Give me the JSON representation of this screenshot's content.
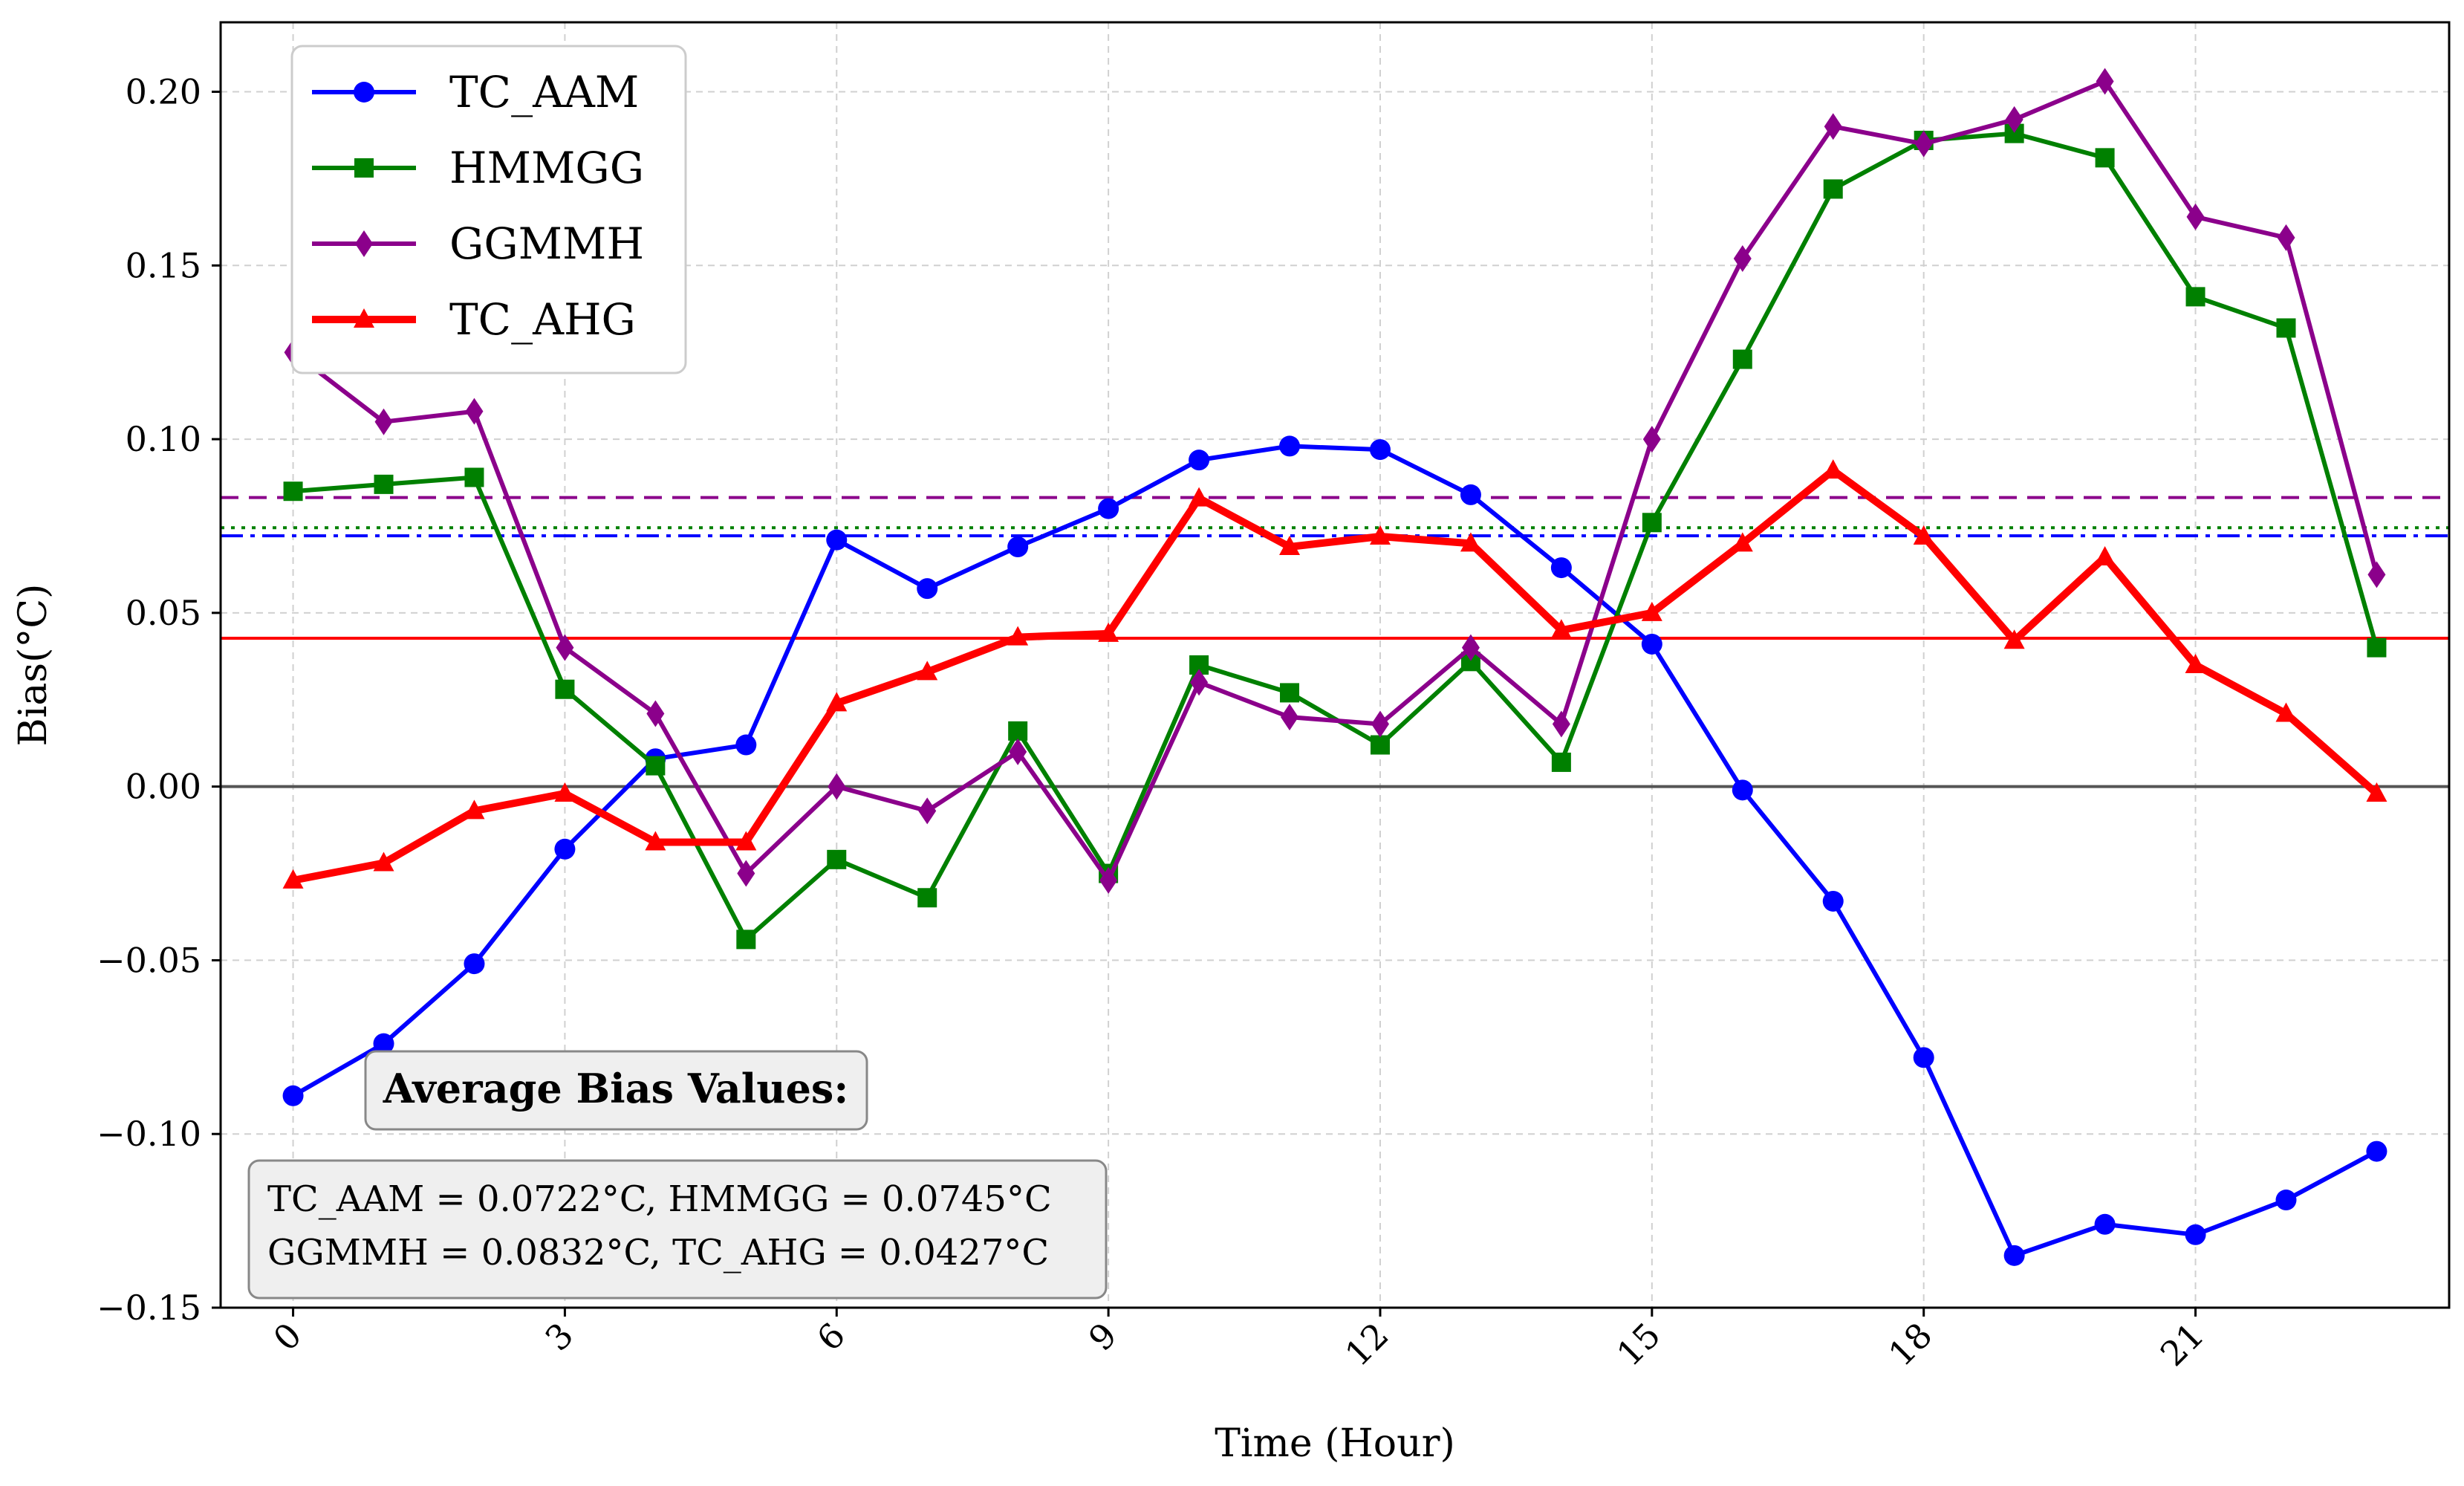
{
  "chart_data": {
    "type": "line",
    "xlabel": "Time (Hour)",
    "ylabel": "Bias(°C)",
    "xlim": [
      -0.8,
      23.8
    ],
    "ylim": [
      -0.15,
      0.22
    ],
    "xticks": [
      0,
      3,
      6,
      9,
      12,
      15,
      18,
      21
    ],
    "x_tick_labels": [
      "0",
      "3",
      "6",
      "9",
      "12",
      "15",
      "18",
      "21"
    ],
    "yticks": [
      -0.15,
      -0.1,
      -0.05,
      0.0,
      0.05,
      0.1,
      0.15,
      0.2
    ],
    "y_tick_labels": [
      "−0.15",
      "−0.10",
      "−0.05",
      "0.00",
      "0.05",
      "0.10",
      "0.15",
      "0.20"
    ],
    "grid": true,
    "legend_position": "top-left",
    "zero_line": {
      "value": 0.0,
      "color": "#555555"
    },
    "x": [
      0,
      1,
      2,
      3,
      4,
      5,
      6,
      7,
      8,
      9,
      10,
      11,
      12,
      13,
      14,
      15,
      16,
      17,
      18,
      19,
      20,
      21,
      22,
      23
    ],
    "series": [
      {
        "name": "TC_AAM",
        "color": "#0000ff",
        "marker": "circle",
        "values": [
          -0.089,
          -0.074,
          -0.051,
          -0.018,
          0.008,
          0.012,
          0.071,
          0.057,
          0.069,
          0.08,
          0.094,
          0.098,
          0.097,
          0.084,
          0.063,
          0.041,
          -0.001,
          -0.033,
          -0.078,
          -0.135,
          -0.126,
          -0.129,
          -0.119,
          -0.105
        ],
        "mean": 0.0722,
        "mean_line_style": "dashdot"
      },
      {
        "name": "HMMGG",
        "color": "#008000",
        "marker": "square",
        "values": [
          0.085,
          0.087,
          0.089,
          0.028,
          0.006,
          -0.044,
          -0.021,
          -0.032,
          0.016,
          -0.025,
          0.035,
          0.027,
          0.012,
          0.036,
          0.007,
          0.076,
          0.123,
          0.172,
          0.186,
          0.188,
          0.181,
          0.141,
          0.132,
          0.04
        ],
        "mean": 0.0745,
        "mean_line_style": "dotted"
      },
      {
        "name": "GGMMH",
        "color": "#8b008b",
        "marker": "diamond",
        "values": [
          0.125,
          0.105,
          0.108,
          0.04,
          0.021,
          -0.025,
          0.0,
          -0.007,
          0.01,
          -0.027,
          0.03,
          0.02,
          0.018,
          0.04,
          0.018,
          0.1,
          0.152,
          0.19,
          0.185,
          0.192,
          0.203,
          0.164,
          0.158,
          0.061
        ],
        "mean": 0.0832,
        "mean_line_style": "dashed"
      },
      {
        "name": "TC_AHG",
        "color": "#ff0000",
        "marker": "triangle",
        "values": [
          -0.027,
          -0.022,
          -0.007,
          -0.002,
          -0.016,
          -0.016,
          0.024,
          0.033,
          0.043,
          0.044,
          0.083,
          0.069,
          0.072,
          0.07,
          0.045,
          0.05,
          0.07,
          0.091,
          0.072,
          0.042,
          0.066,
          0.035,
          0.021,
          -0.002
        ],
        "mean": 0.0427,
        "mean_line_style": "solid"
      }
    ],
    "annotation": {
      "title": "Average Bias Values:",
      "line1": "TC_AAM = 0.0722°C,  HMMGG = 0.0745°C",
      "line2": "GGMMH = 0.0832°C,  TC_AHG = 0.0427°C"
    }
  }
}
